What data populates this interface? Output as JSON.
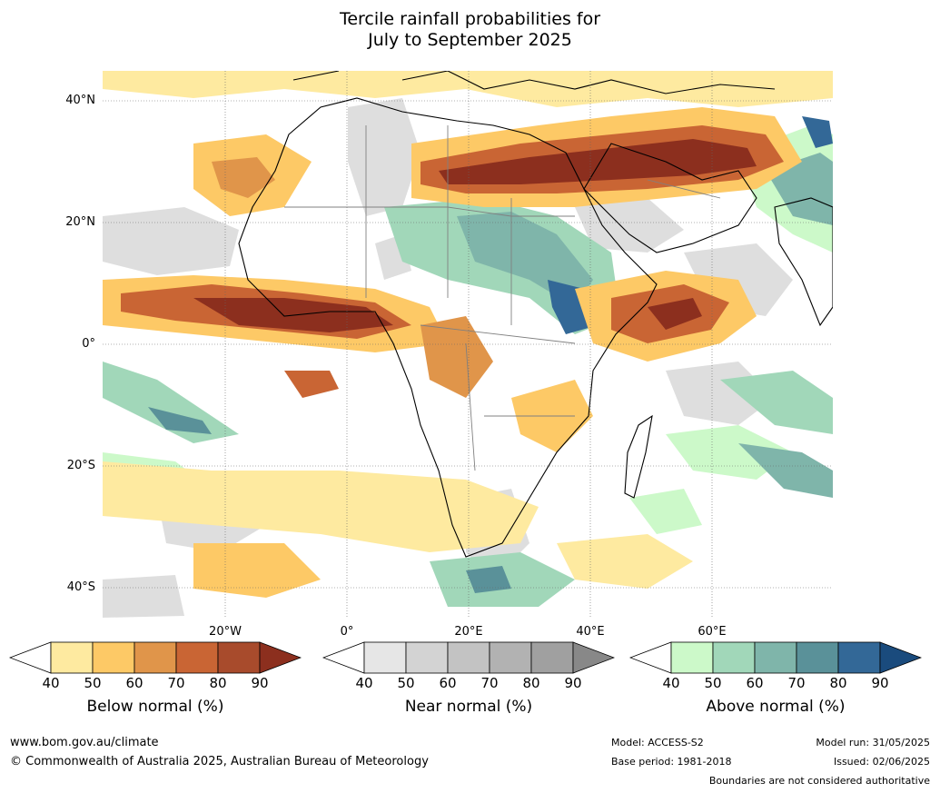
{
  "title": {
    "line1": "Tercile rainfall probabilities for",
    "line2": "July to September 2025"
  },
  "map": {
    "latitude_labels": [
      "40°N",
      "20°N",
      "0°",
      "20°S",
      "40°S"
    ],
    "longitude_labels": [
      "20°W",
      "0°",
      "20°E",
      "40°E",
      "60°E"
    ],
    "ocean_color": "#ffffff",
    "coastline_color": "#000000",
    "border_color": "#808080"
  },
  "colorbars": [
    {
      "title": "Below normal (%)",
      "ticks": [
        "40",
        "50",
        "60",
        "70",
        "80",
        "90"
      ],
      "colors": [
        "#ffffff",
        "#feeaa0",
        "#fdc966",
        "#e0954a",
        "#c96534",
        "#a84b2c",
        "#8c2f1e"
      ]
    },
    {
      "title": "Near normal (%)",
      "ticks": [
        "40",
        "50",
        "60",
        "70",
        "80",
        "90"
      ],
      "colors": [
        "#ffffff",
        "#e6e6e6",
        "#d3d3d3",
        "#c3c3c3",
        "#b2b2b2",
        "#a0a0a0",
        "#888888"
      ]
    },
    {
      "title": "Above normal (%)",
      "ticks": [
        "40",
        "50",
        "60",
        "70",
        "80",
        "90"
      ],
      "colors": [
        "#ffffff",
        "#ccf9c9",
        "#a1d7b9",
        "#7fb5aa",
        "#5a9199",
        "#336897",
        "#1a4b7d"
      ]
    }
  ],
  "footer": {
    "website": "www.bom.gov.au/climate",
    "copyright": "© Commonwealth of Australia 2025, Australian Bureau of Meteorology",
    "model": "Model: ACCESS-S2",
    "base_period": "Base period: 1981-2018",
    "model_run": "Model run: 31/05/2025",
    "issued": "Issued: 02/06/2025",
    "disclaimer": "Boundaries are not considered authoritative"
  }
}
